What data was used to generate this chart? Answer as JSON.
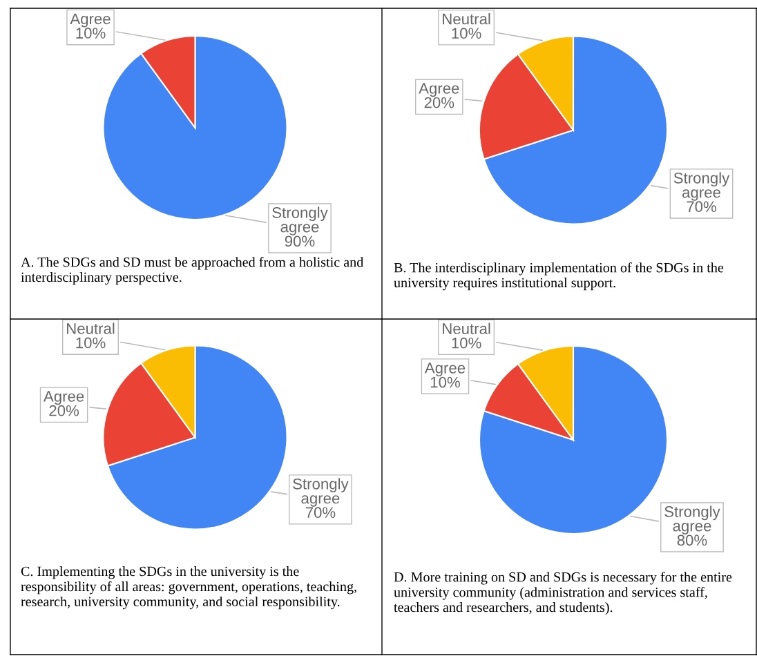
{
  "chart_data": [
    {
      "type": "pie",
      "categories": [
        "Strongly agree",
        "Agree"
      ],
      "values": [
        90,
        10
      ],
      "value_labels": [
        "90%",
        "10%"
      ],
      "colors": [
        "#4285f4",
        "#ea4335"
      ],
      "annotations": [
        "A. The SDGs and SD must be approached from a holistic and interdisciplinary perspective."
      ]
    },
    {
      "type": "pie",
      "categories": [
        "Strongly agree",
        "Agree",
        "Neutral"
      ],
      "values": [
        70,
        20,
        10
      ],
      "value_labels": [
        "70%",
        "20%",
        "10%"
      ],
      "colors": [
        "#4285f4",
        "#ea4335",
        "#fbbc04"
      ],
      "annotations": [
        "B. The interdisciplinary implementation of the SDGs in the university requires institutional support."
      ]
    },
    {
      "type": "pie",
      "categories": [
        "Strongly agree",
        "Agree",
        "Neutral"
      ],
      "values": [
        70,
        20,
        10
      ],
      "value_labels": [
        "70%",
        "20%",
        "10%"
      ],
      "colors": [
        "#4285f4",
        "#ea4335",
        "#fbbc04"
      ],
      "annotations": [
        "C. Implementing the SDGs in the university is the responsibility of all areas: government, operations, teaching, research, university community, and social responsibility."
      ]
    },
    {
      "type": "pie",
      "categories": [
        "Strongly agree",
        "Agree",
        "Neutral"
      ],
      "values": [
        80,
        10,
        10
      ],
      "value_labels": [
        "80%",
        "10%",
        "10%"
      ],
      "colors": [
        "#4285f4",
        "#ea4335",
        "#fbbc04"
      ],
      "annotations": [
        "D. More training on SD and SDGs is necessary for the entire university community (administration and services staff, teachers and researchers, and students)."
      ]
    }
  ]
}
